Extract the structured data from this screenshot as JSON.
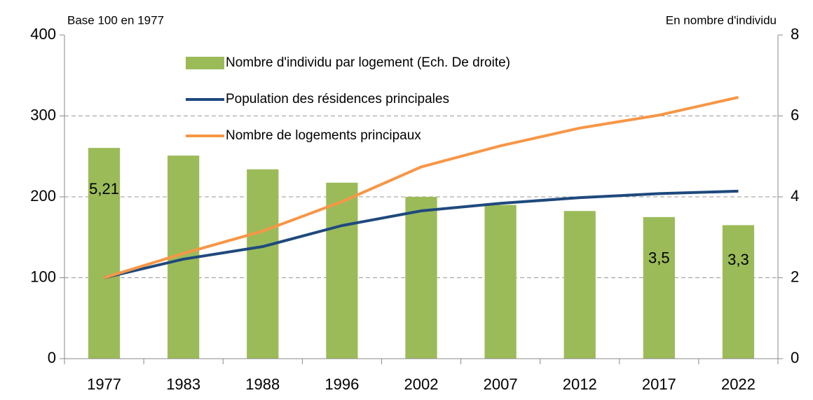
{
  "chart_data": {
    "type": "combo",
    "y_label": "Base 100 en 1977",
    "y2_label": "En nombre d'individu",
    "categories": [
      "1977",
      "1983",
      "1988",
      "1996",
      "2002",
      "2007",
      "2012",
      "2017",
      "2022"
    ],
    "series": [
      {
        "name": "Nombre d'individu par logement (Ech. De droite)",
        "type": "bar",
        "axis": "y2",
        "color": "#9bbb59",
        "values": [
          5.21,
          5.02,
          4.68,
          4.35,
          4.0,
          3.8,
          3.65,
          3.5,
          3.3
        ],
        "value_labels": [
          "5,21",
          null,
          null,
          null,
          null,
          null,
          null,
          "3,5",
          "3,3"
        ]
      },
      {
        "name": "Population des résidences principales",
        "type": "line",
        "color": "#1f497d",
        "values": [
          100,
          123,
          138.5,
          164.5,
          182.7,
          192,
          199,
          204,
          207
        ]
      },
      {
        "name": "Nombre de logements principaux",
        "type": "line",
        "color": "#f79646",
        "values": [
          100,
          130,
          157.6,
          194,
          237,
          263,
          285,
          301,
          323
        ]
      }
    ],
    "ylim": [
      0,
      400
    ],
    "yticks": [
      0,
      100,
      200,
      300,
      400
    ],
    "y2lim": [
      0,
      8
    ],
    "y2ticks": [
      0,
      2,
      4,
      6,
      8
    ],
    "grid": true
  }
}
